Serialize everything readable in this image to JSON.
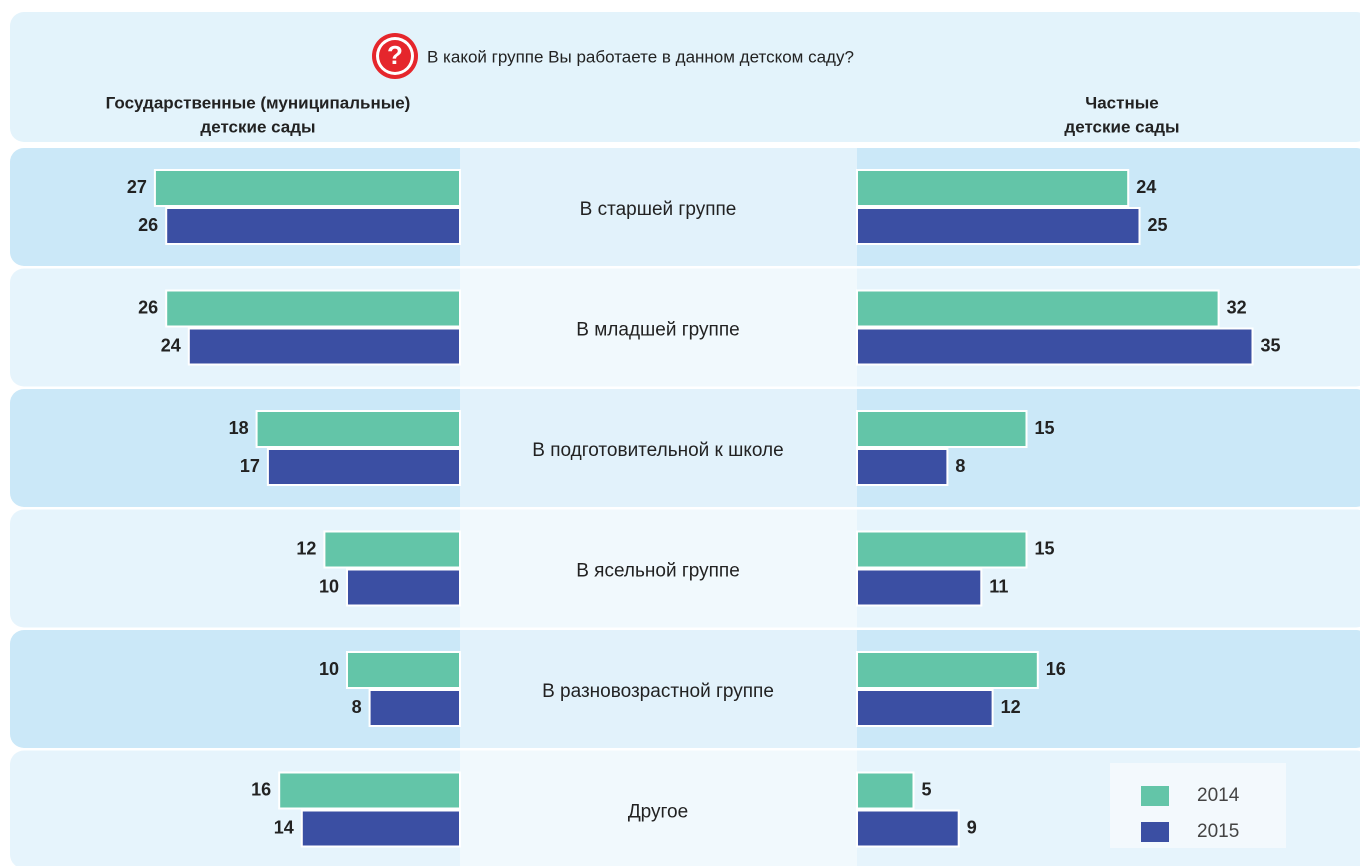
{
  "chart_data": {
    "type": "bar",
    "orientation": "horizontal",
    "title": "В какой группе Вы работаете в данном детском саду?",
    "categories": [
      "В старшей группе",
      "В младшей группе",
      "В подготовительной к школе",
      "В ясельной группе",
      "В разновозрастной группе",
      "Другое"
    ],
    "series": [
      {
        "name": "2014",
        "color": "#63c5a8"
      },
      {
        "name": "2015",
        "color": "#3b4fa3"
      }
    ],
    "panels": [
      {
        "title": [
          "Государственные (муниципальные)",
          "детские сады"
        ],
        "values": [
          [
            27,
            26,
            18,
            12,
            10,
            16
          ],
          [
            26,
            24,
            17,
            10,
            8,
            14
          ]
        ]
      },
      {
        "title": [
          "Частные",
          "детские сады"
        ],
        "values": [
          [
            24,
            32,
            15,
            15,
            16,
            5
          ],
          [
            25,
            35,
            8,
            11,
            12,
            9
          ]
        ]
      }
    ],
    "legend": "bottom right"
  }
}
